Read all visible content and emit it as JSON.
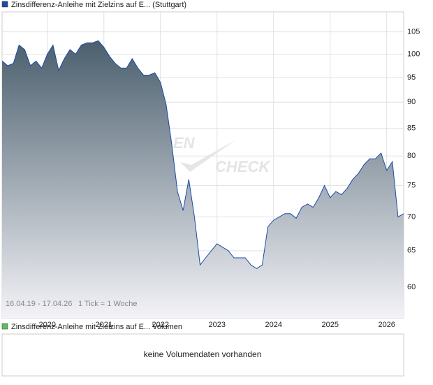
{
  "chart_data": {
    "type": "area",
    "series": [
      {
        "name": "Zinsdifferenz-Anleihe mit Zielzins auf E... (Stuttgart)",
        "color": "#1c4aa6",
        "values": [
          98.5,
          97.5,
          98,
          102,
          101,
          97.5,
          98.5,
          97,
          100,
          102,
          96.5,
          99,
          101,
          100,
          102,
          102.5,
          102.5,
          103,
          101.5,
          99.5,
          98,
          97,
          97,
          99,
          97,
          95.5,
          95.5,
          96,
          94,
          89.5,
          82,
          74,
          71,
          76,
          70,
          63,
          64,
          65,
          66,
          65.5,
          65,
          64,
          64,
          64,
          63,
          62.5,
          63,
          68.5,
          69.5,
          70,
          70.5,
          70.5,
          69.8,
          71.5,
          72,
          71.5,
          73,
          75,
          73,
          74,
          73.5,
          74.5,
          76,
          77,
          78.5,
          79.5,
          79.5,
          80.5,
          77.5,
          79,
          70,
          70.5
        ]
      }
    ],
    "x": [
      2019.2,
      2019.3,
      2019.4,
      2019.5,
      2019.6,
      2019.7,
      2019.8,
      2019.9,
      2020.0,
      2020.1,
      2020.2,
      2020.3,
      2020.4,
      2020.5,
      2020.6,
      2020.7,
      2020.8,
      2020.9,
      2021.0,
      2021.1,
      2021.2,
      2021.3,
      2021.4,
      2021.5,
      2021.6,
      2021.7,
      2021.8,
      2021.9,
      2022.0,
      2022.1,
      2022.2,
      2022.3,
      2022.4,
      2022.5,
      2022.6,
      2022.7,
      2022.8,
      2022.9,
      2023.0,
      2023.1,
      2023.2,
      2023.3,
      2023.4,
      2023.5,
      2023.6,
      2023.7,
      2023.8,
      2023.9,
      2024.0,
      2024.1,
      2024.2,
      2024.3,
      2024.4,
      2024.5,
      2024.6,
      2024.7,
      2024.8,
      2024.9,
      2025.0,
      2025.1,
      2025.2,
      2025.3,
      2025.4,
      2025.5,
      2025.6,
      2025.7,
      2025.8,
      2025.9,
      2026.0,
      2026.1,
      2026.2,
      2026.3
    ],
    "xlim": [
      2019.2,
      2026.3
    ],
    "xticks": [
      2020,
      2021,
      2022,
      2023,
      2024,
      2025,
      2026
    ],
    "ylim": [
      56.1,
      109.7
    ],
    "yticks": [
      60,
      65,
      70,
      75,
      80,
      85,
      90,
      95,
      100,
      105
    ],
    "log_scale": true,
    "grid": true,
    "date_range": "16.04.19 - 17.04.26",
    "tick_note": "1 Tick = 1 Woche",
    "watermark": [
      "EN",
      "CHECK"
    ]
  },
  "volume_panel": {
    "legend": "Zinsdifferenz-Anleihe mit Zielzins auf E... Volumen",
    "legend_color": "#5cbf5c",
    "message": "keine Volumendaten vorhanden"
  }
}
